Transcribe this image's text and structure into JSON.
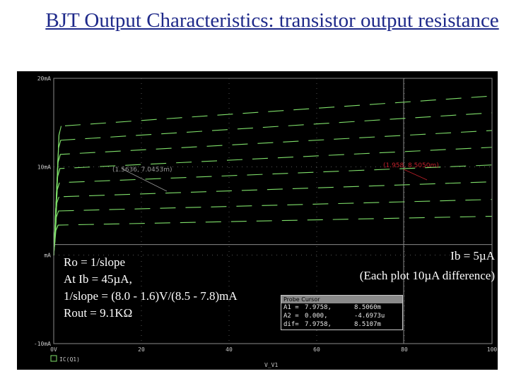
{
  "title": "BJT Output Characteristics: transistor output resistance",
  "plot": {
    "y_tick_labels": [
      "20mA",
      "10mA",
      "mA",
      "-10mA"
    ],
    "x_tick_labels": [
      "0V",
      "20",
      "40",
      "60",
      "80",
      "100"
    ],
    "trace_label": "IC(Q1)",
    "x_axis_label": "V_V1",
    "cursor_a1_label": "(1.5636, 7.0453m)",
    "cursor_a2_label": "(1.958, 8.5050m)"
  },
  "chart_data": {
    "type": "line",
    "xlabel": "V_V1",
    "ylabel": "",
    "xlim": [
      0,
      100
    ],
    "ylim": [
      -10,
      20
    ],
    "units": {
      "x": "V",
      "y": "mA"
    },
    "grid": true,
    "series": [
      {
        "values": [
          [
            0,
            0
          ],
          [
            0.5,
            2.8
          ],
          [
            1.0,
            3.4
          ],
          [
            100,
            4.4
          ]
        ]
      },
      {
        "values": [
          [
            0,
            0
          ],
          [
            0.6,
            4.3
          ],
          [
            1.1,
            5.0
          ],
          [
            100,
            6.3
          ]
        ]
      },
      {
        "values": [
          [
            0,
            0
          ],
          [
            0.7,
            5.9
          ],
          [
            1.2,
            6.6
          ],
          [
            100,
            8.3
          ]
        ]
      },
      {
        "values": [
          [
            0,
            0
          ],
          [
            0.8,
            7.4
          ],
          [
            1.3,
            8.2
          ],
          [
            100,
            10.2
          ]
        ]
      },
      {
        "values": [
          [
            0,
            0
          ],
          [
            0.9,
            8.9
          ],
          [
            1.4,
            9.8
          ],
          [
            100,
            12.2
          ]
        ]
      },
      {
        "values": [
          [
            0,
            0
          ],
          [
            1.0,
            10.5
          ],
          [
            1.5,
            11.4
          ],
          [
            100,
            14.1
          ]
        ]
      },
      {
        "values": [
          [
            0,
            0
          ],
          [
            1.1,
            12.1
          ],
          [
            1.6,
            13.0
          ],
          [
            100,
            16.1
          ]
        ]
      },
      {
        "values": [
          [
            0,
            0
          ],
          [
            1.2,
            13.6
          ],
          [
            1.7,
            14.6
          ],
          [
            100,
            18.0
          ]
        ]
      }
    ],
    "annotations": [
      "(1.5636, 7.0453m)",
      "(1.958, 8.5050m)"
    ]
  },
  "calc": {
    "line1": "Ro = 1/slope",
    "line2": "At Ib = 45µA,",
    "line3": "1/slope = (8.0 - 1.6)V/(8.5 - 7.8)mA",
    "line4": "Rout =  9.1KΩ"
  },
  "note": {
    "line1": "Ib = 5µA",
    "line2": "(Each plot 10µA difference)"
  },
  "probe": {
    "title": "Probe Cursor",
    "rows": [
      [
        "A1 =",
        "7.9758,",
        "8.5060m"
      ],
      [
        "A2 =",
        "0.000,",
        "-4.6973u"
      ],
      [
        "dif=",
        "7.9758,",
        "8.5107m"
      ]
    ]
  },
  "colors": {
    "background": "#000000",
    "trace": "#7fe06a",
    "grid": "#8a8a8a",
    "cursor": "#c0202a",
    "title": "#1f2a8a"
  }
}
